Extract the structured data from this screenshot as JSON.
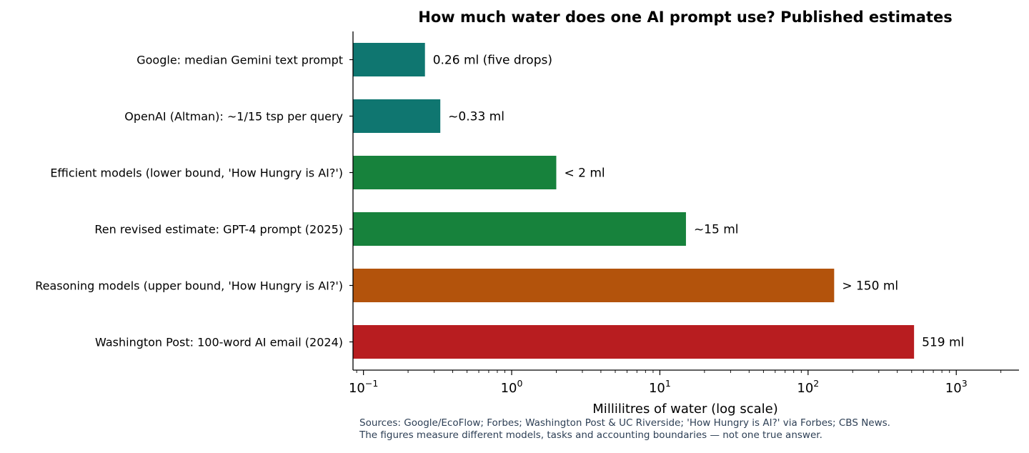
{
  "chart_data": {
    "type": "bar",
    "orientation": "horizontal",
    "title": "How much water does one AI prompt use? Published estimates",
    "xlabel": "Millilitres of water (log scale)",
    "ylabel": "",
    "x_scale": "log",
    "xlim": [
      0.085,
      2650
    ],
    "x_ticks": [
      {
        "value": 0.1,
        "base": "10",
        "exp": "−1"
      },
      {
        "value": 1,
        "base": "10",
        "exp": "0"
      },
      {
        "value": 10,
        "base": "10",
        "exp": "1"
      },
      {
        "value": 100,
        "base": "10",
        "exp": "2"
      },
      {
        "value": 1000,
        "base": "10",
        "exp": "3"
      }
    ],
    "grid": false,
    "categories": [
      "Google: median Gemini text prompt",
      "OpenAI (Altman): ~1/15 tsp per query",
      "Efficient models (lower bound, 'How Hungry is AI?')",
      "Ren revised estimate: GPT-4 prompt (2025)",
      "Reasoning models (upper bound, 'How Hungry is AI?')",
      "Washington Post: 100-word AI email (2024)"
    ],
    "values": [
      0.26,
      0.33,
      2,
      15,
      150,
      519
    ],
    "data_labels": [
      "0.26 ml (five drops)",
      "~0.33 ml",
      "< 2 ml",
      "~15 ml",
      "> 150 ml",
      "519 ml"
    ],
    "colors": [
      "#0f7670",
      "#0f7670",
      "#17823c",
      "#17823c",
      "#b3530c",
      "#b81d20"
    ]
  },
  "footnotes": {
    "sources": "Sources: Google/EcoFlow; Forbes; Washington Post & UC Riverside; 'How Hungry is AI?' via Forbes; CBS News.",
    "caveat": "The figures measure different models, tasks and accounting boundaries — not one true answer."
  }
}
